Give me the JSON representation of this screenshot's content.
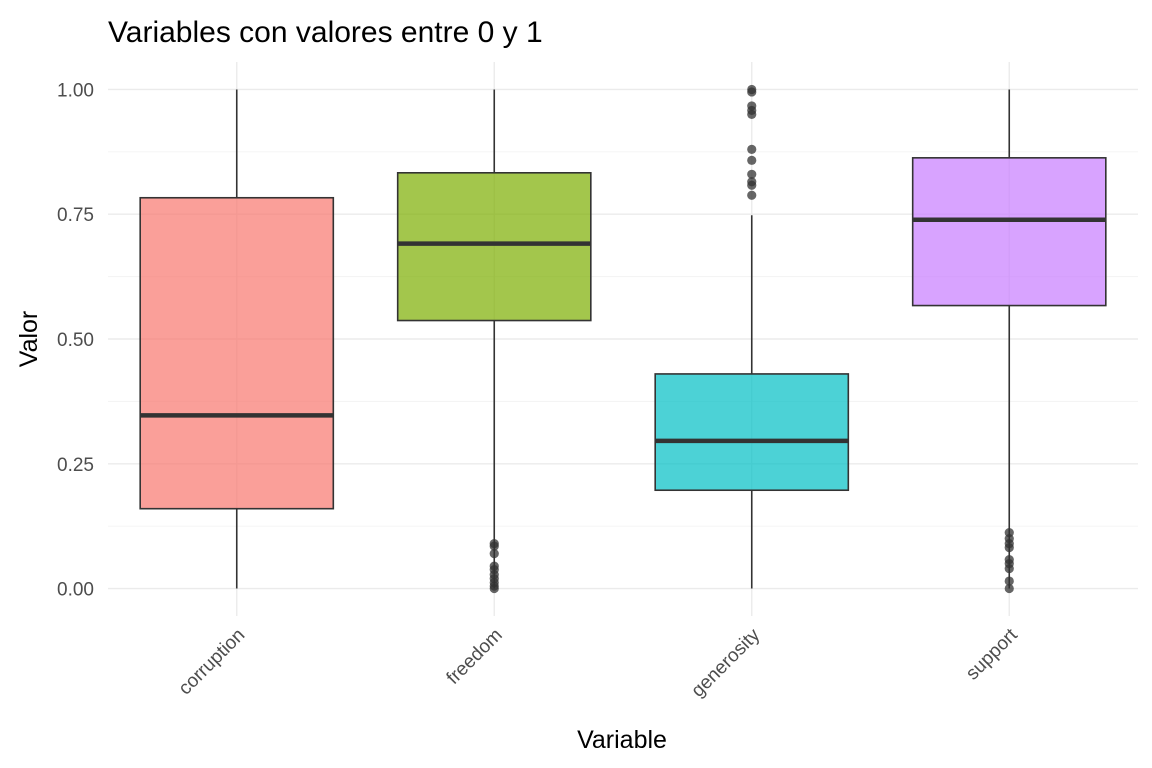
{
  "chart_data": {
    "type": "boxplot",
    "title": "Variables con valores entre 0 y 1",
    "xlabel": "Variable",
    "ylabel": "Valor",
    "ylim": [
      -0.055,
      1.055
    ],
    "yticks": [
      0.0,
      0.25,
      0.5,
      0.75,
      1.0
    ],
    "yticklabels": [
      "0.00",
      "0.25",
      "0.50",
      "0.75",
      "1.00"
    ],
    "grid": true,
    "legend": "none",
    "categories": [
      "corruption",
      "freedom",
      "generosity",
      "support"
    ],
    "boxes": [
      {
        "category": "corruption",
        "color": "#F8766D",
        "whisker_low": 0.0,
        "q1": 0.16,
        "median": 0.347,
        "q3": 0.783,
        "whisker_high": 1.0,
        "outliers": []
      },
      {
        "category": "freedom",
        "color": "#7CAE00",
        "whisker_low": 0.0,
        "q1": 0.537,
        "median": 0.691,
        "q3": 0.833,
        "whisker_high": 1.0,
        "outliers": [
          0.0,
          0.005,
          0.012,
          0.02,
          0.028,
          0.038,
          0.045,
          0.07,
          0.085,
          0.09
        ]
      },
      {
        "category": "generosity",
        "color": "#00BFC4",
        "whisker_low": 0.0,
        "q1": 0.197,
        "median": 0.296,
        "q3": 0.43,
        "whisker_high": 0.748,
        "outliers": [
          0.788,
          0.808,
          0.815,
          0.83,
          0.858,
          0.88,
          0.95,
          0.958,
          0.967,
          0.995,
          1.0
        ]
      },
      {
        "category": "support",
        "color": "#C77CFF",
        "whisker_low": 0.0,
        "q1": 0.567,
        "median": 0.739,
        "q3": 0.863,
        "whisker_high": 1.0,
        "outliers": [
          0.0,
          0.015,
          0.04,
          0.05,
          0.058,
          0.082,
          0.09,
          0.1,
          0.112
        ]
      }
    ]
  }
}
